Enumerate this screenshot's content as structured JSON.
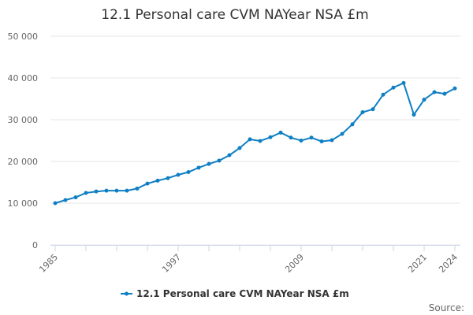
{
  "chart_data": {
    "type": "line",
    "title": "12.1 Personal care CVM NAYear NSA £m",
    "xlabel": "",
    "ylabel": "",
    "ylim": [
      0,
      50000
    ],
    "yticks": [
      0,
      10000,
      20000,
      30000,
      40000,
      50000
    ],
    "ytick_labels": [
      "0",
      "10 000",
      "20 000",
      "30 000",
      "40 000",
      "50 000"
    ],
    "xtick_labels": [
      "1985",
      "1997",
      "2009",
      "2021",
      "2024"
    ],
    "grid": true,
    "legend_position": "bottom",
    "color": "#0f7fc4",
    "series": [
      {
        "name": "12.1 Personal care CVM NAYear NSA £m",
        "x": [
          1985,
          1986,
          1987,
          1988,
          1989,
          1990,
          1991,
          1992,
          1993,
          1994,
          1995,
          1996,
          1997,
          1998,
          1999,
          2000,
          2001,
          2002,
          2003,
          2004,
          2005,
          2006,
          2007,
          2008,
          2009,
          2010,
          2011,
          2012,
          2013,
          2014,
          2015,
          2016,
          2017,
          2018,
          2019,
          2020,
          2021,
          2022,
          2023,
          2024
        ],
        "values": [
          10000,
          10750,
          11400,
          12450,
          12800,
          13000,
          13000,
          13000,
          13500,
          14700,
          15400,
          16000,
          16800,
          17450,
          18500,
          19400,
          20200,
          21500,
          23200,
          25300,
          24900,
          25800,
          26900,
          25700,
          25000,
          25700,
          24800,
          25100,
          26600,
          28900,
          31800,
          32500,
          36000,
          37700,
          38800,
          31200,
          34800,
          36600,
          36200,
          37500
        ]
      }
    ]
  },
  "source_label": "Source:"
}
